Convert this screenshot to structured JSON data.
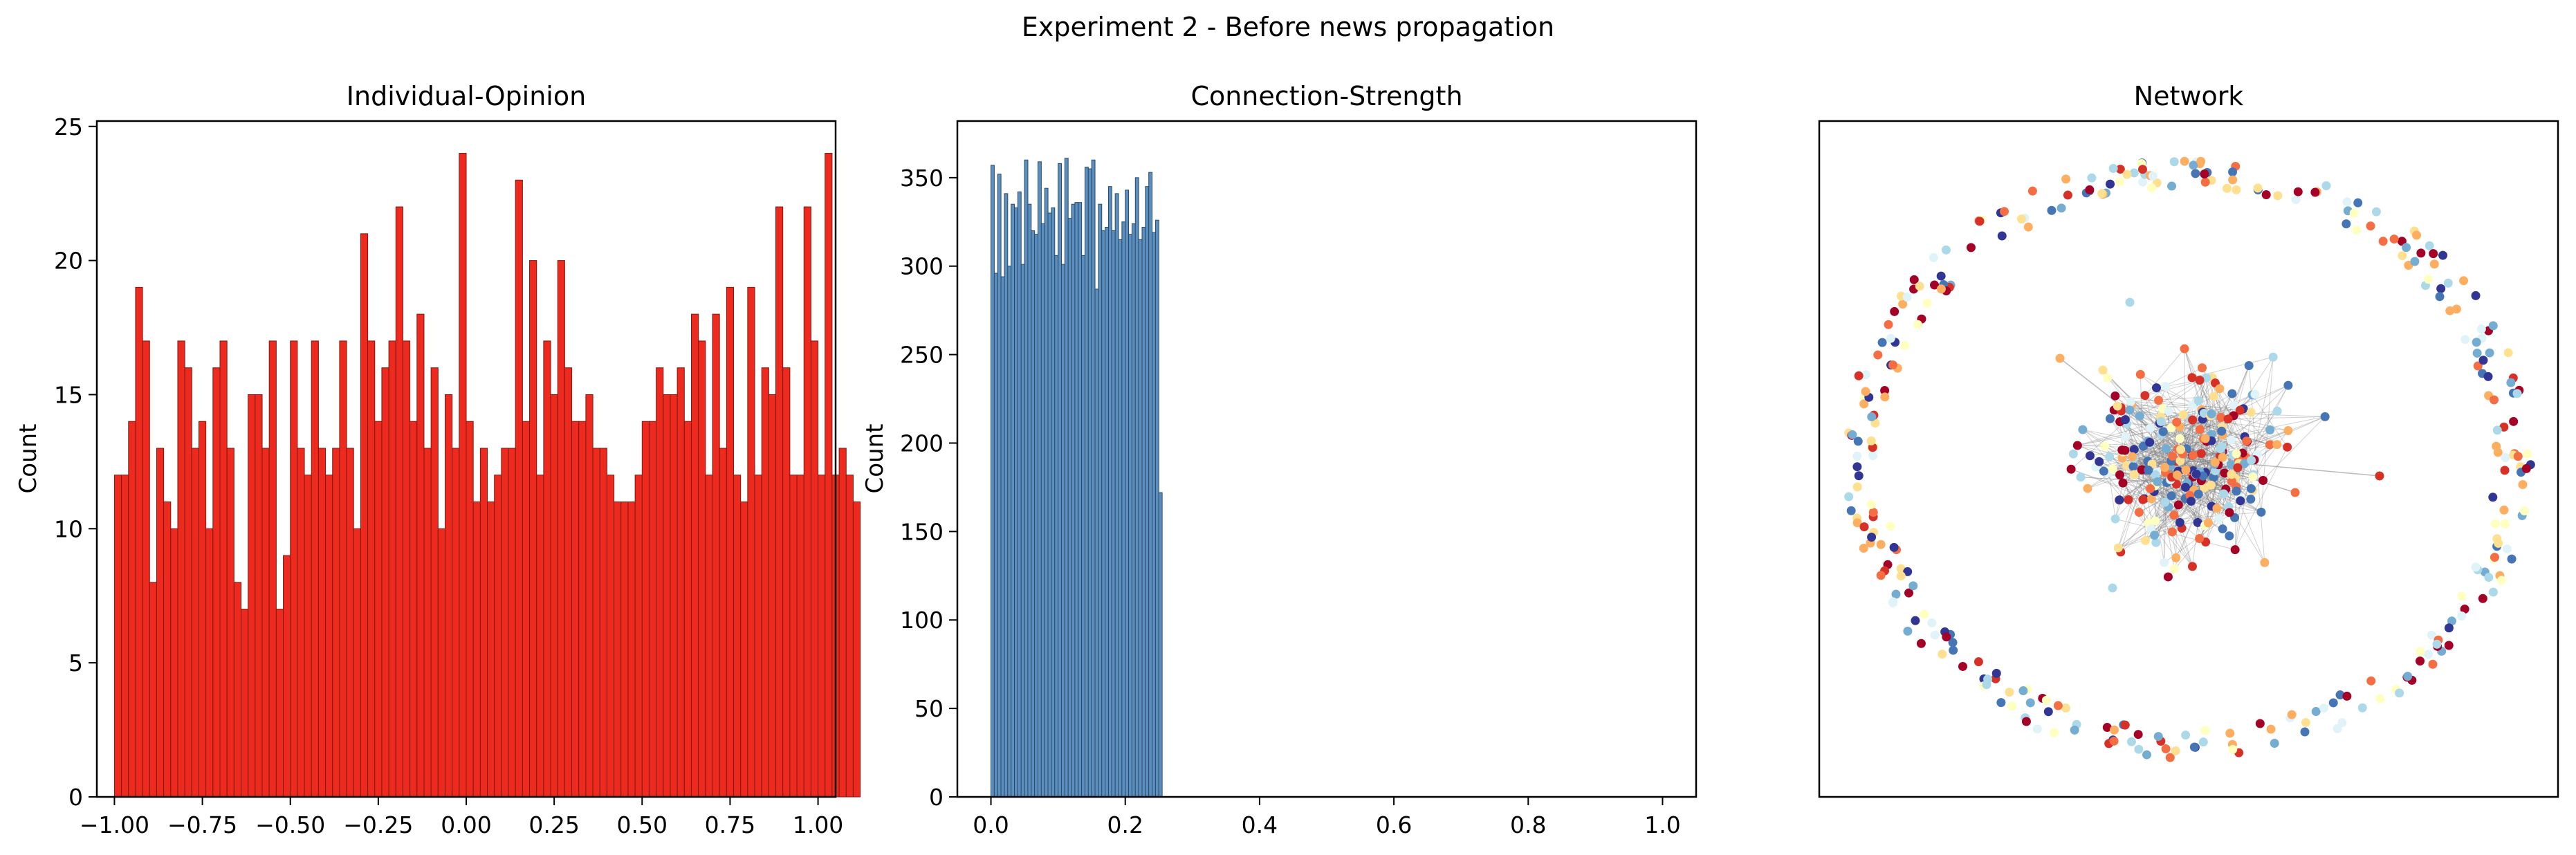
{
  "figure": {
    "suptitle": "Experiment 2 - Before news propagation"
  },
  "chart_data": [
    {
      "type": "bar",
      "title": "Individual-Opinion",
      "xlabel": "",
      "ylabel": "Count",
      "xlim": [
        -1.05,
        1.05
      ],
      "ylim": [
        0,
        25.2
      ],
      "xticks": [
        -1.0,
        -0.75,
        -0.5,
        -0.25,
        0.0,
        0.25,
        0.5,
        0.75,
        1.0
      ],
      "xtick_labels": [
        "−1.00",
        "−0.75",
        "−0.50",
        "−0.25",
        "0.00",
        "0.25",
        "0.50",
        "0.75",
        "1.00"
      ],
      "yticks": [
        0,
        5,
        10,
        15,
        20,
        25
      ],
      "ytick_labels": [
        "0",
        "5",
        "10",
        "15",
        "20",
        "25"
      ],
      "bin_start": -1.0,
      "bin_width": 0.02,
      "color": "#ee2a1e",
      "edgecolor": "#7a1a14",
      "values": [
        12,
        12,
        14,
        19,
        17,
        8,
        13,
        11,
        10,
        17,
        16,
        13,
        14,
        10,
        16,
        17,
        13,
        8,
        7,
        15,
        15,
        13,
        17,
        7,
        9,
        17,
        13,
        12,
        17,
        13,
        12,
        13,
        17,
        13,
        10,
        21,
        17,
        14,
        16,
        17,
        22,
        17,
        14,
        18,
        13,
        16,
        10,
        15,
        13,
        24,
        14,
        11,
        13,
        11,
        12,
        13,
        13,
        23,
        14,
        20,
        12,
        17,
        15,
        20,
        16,
        14,
        14,
        15,
        13,
        13,
        12,
        11,
        11,
        11,
        12,
        14,
        14,
        16,
        15,
        15,
        16,
        14,
        18,
        17,
        12,
        18,
        13,
        19,
        12,
        11,
        19,
        12,
        16,
        15,
        22,
        16,
        12,
        12,
        22,
        17,
        12,
        24,
        12,
        13,
        12,
        11
      ]
    },
    {
      "type": "bar",
      "title": "Connection-Strength",
      "xlabel": "",
      "ylabel": "Count",
      "xlim": [
        -0.05,
        1.05
      ],
      "ylim": [
        0,
        382
      ],
      "xticks": [
        0.0,
        0.2,
        0.4,
        0.6,
        0.8,
        1.0
      ],
      "xtick_labels": [
        "0.0",
        "0.2",
        "0.4",
        "0.6",
        "0.8",
        "1.0"
      ],
      "yticks": [
        0,
        50,
        100,
        150,
        200,
        250,
        300,
        350
      ],
      "ytick_labels": [
        "0",
        "50",
        "100",
        "150",
        "200",
        "250",
        "300",
        "350"
      ],
      "bin_start": 0.0,
      "bin_width": 0.005,
      "color": "#5b8fc0",
      "edgecolor": "#2c4a66",
      "values": [
        357,
        296,
        352,
        294,
        341,
        300,
        335,
        333,
        342,
        301,
        360,
        335,
        320,
        318,
        359,
        324,
        344,
        330,
        333,
        306,
        358,
        301,
        361,
        327,
        335,
        336,
        336,
        306,
        356,
        355,
        360,
        287,
        335,
        320,
        322,
        345,
        320,
        341,
        315,
        325,
        343,
        318,
        324,
        350,
        315,
        322,
        345,
        353,
        319,
        326,
        172
      ]
    },
    {
      "type": "scatter",
      "title": "Network",
      "xlabel": "",
      "ylabel": "",
      "grid": false,
      "palette": [
        "#a50026",
        "#d73027",
        "#f46d43",
        "#fdae61",
        "#fee090",
        "#ffffbf",
        "#e0f3f8",
        "#abd9e9",
        "#74add1",
        "#4575b4",
        "#313695"
      ]
    }
  ]
}
